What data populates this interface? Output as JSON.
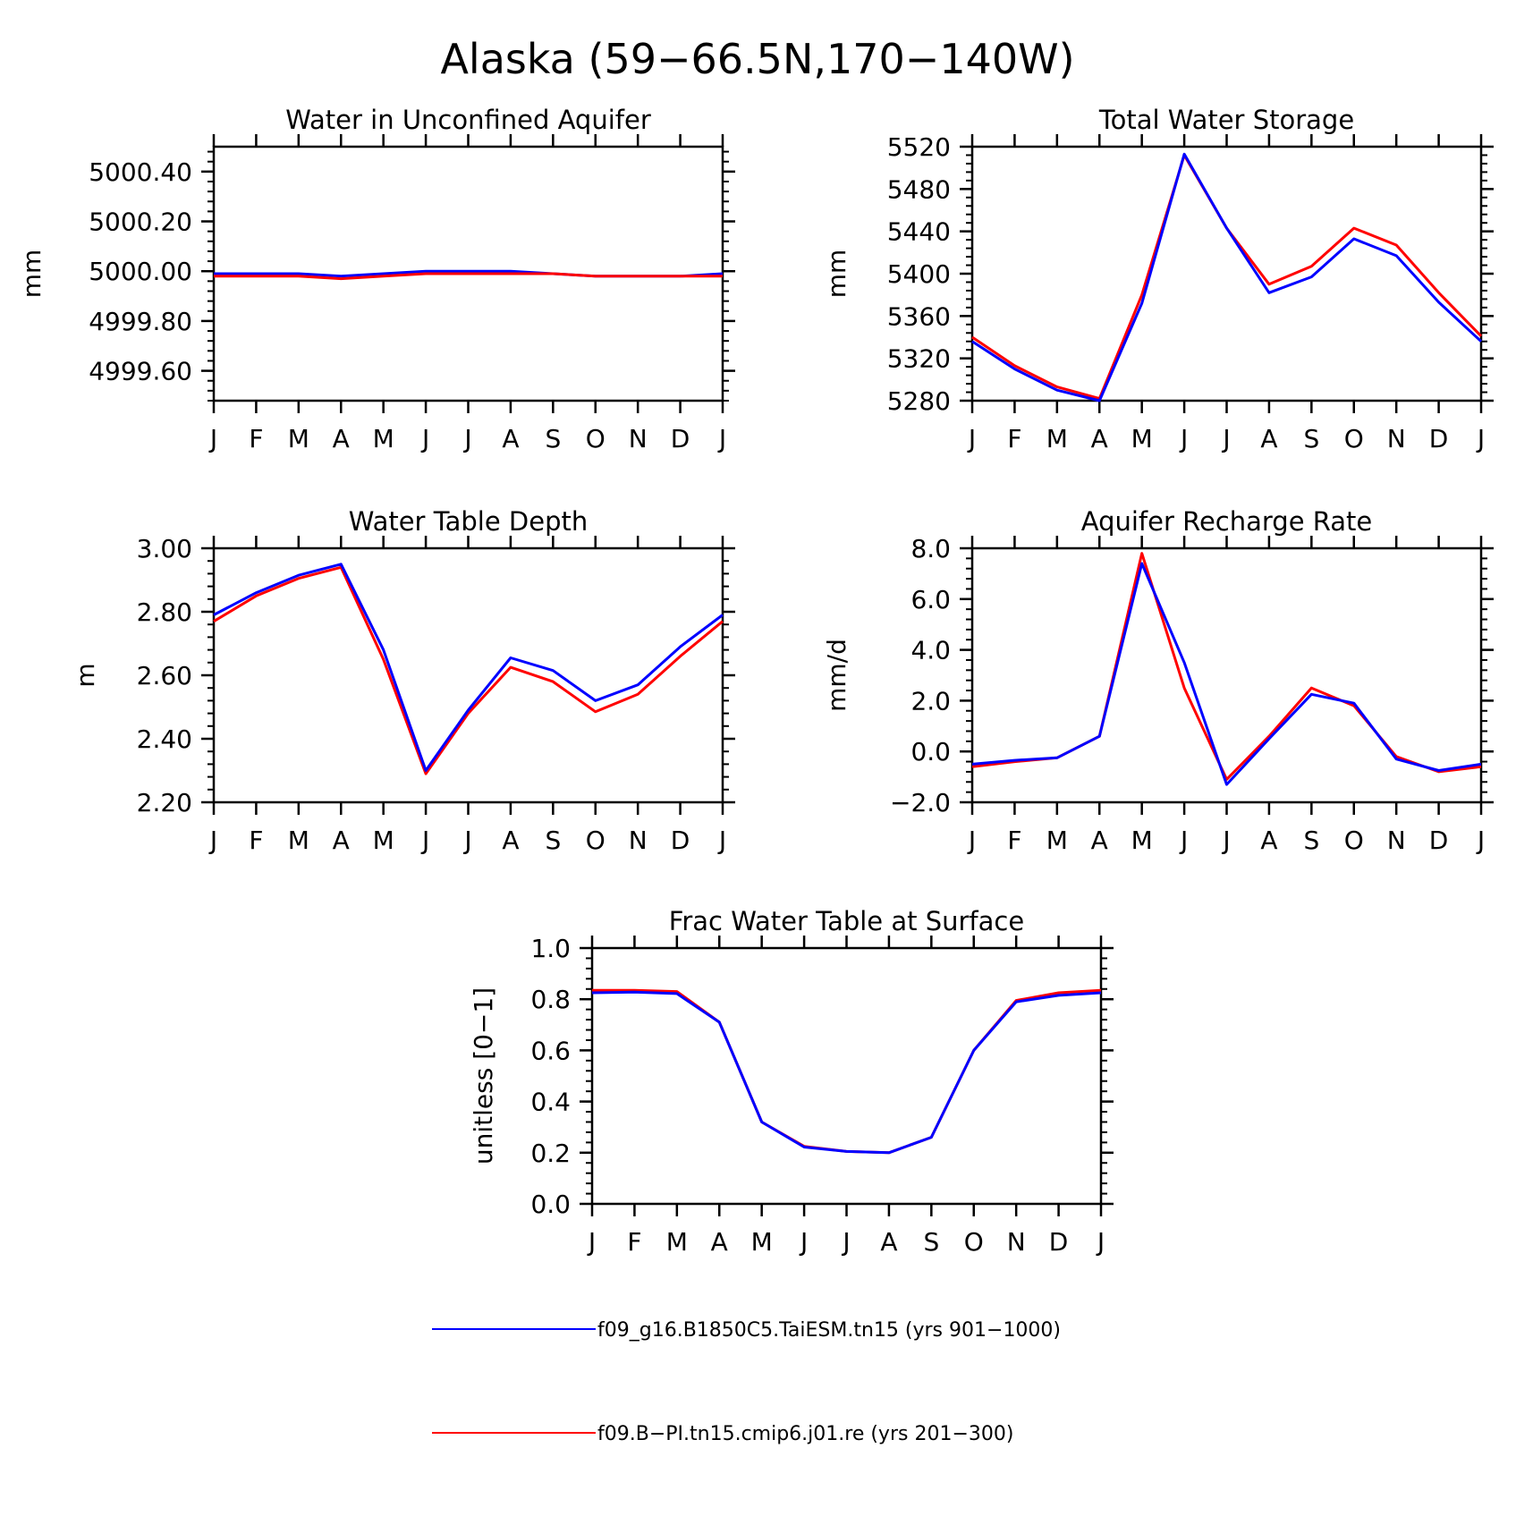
{
  "figure": {
    "title": "Alaska (59−66.5N,170−140W)"
  },
  "months": [
    "J",
    "F",
    "M",
    "A",
    "M",
    "J",
    "J",
    "A",
    "S",
    "O",
    "N",
    "D",
    "J"
  ],
  "colors": {
    "blue": "#0000ff",
    "red": "#ff0000"
  },
  "legend": [
    {
      "label": "f09_g16.B1850C5.TaiESM.tn15 (yrs 901−1000)",
      "color": "#0000ff"
    },
    {
      "label": "f09.B−PI.tn15.cmip6.j01.re (yrs 201−300)",
      "color": "#ff0000"
    }
  ],
  "chart_data": [
    {
      "type": "line",
      "title": "Water in Unconfined Aquifer",
      "ylabel": "mm",
      "ylim": [
        4999.48,
        5000.5
      ],
      "yticks": [
        4999.6,
        4999.8,
        5000.0,
        5000.2,
        5000.4
      ],
      "ytick_labels": [
        "4999.60",
        "4999.80",
        "5000.00",
        "5000.20",
        "5000.40"
      ],
      "yminor_step": 0.04,
      "series": [
        {
          "color": "#0000ff",
          "values": [
            4999.99,
            4999.99,
            4999.99,
            4999.98,
            4999.99,
            5000.0,
            5000.0,
            5000.0,
            4999.99,
            4999.98,
            4999.98,
            4999.98,
            4999.99
          ]
        },
        {
          "color": "#ff0000",
          "values": [
            4999.98,
            4999.98,
            4999.98,
            4999.97,
            4999.98,
            4999.99,
            4999.99,
            4999.99,
            4999.99,
            4999.98,
            4999.98,
            4999.98,
            4999.98
          ]
        }
      ]
    },
    {
      "type": "line",
      "title": "Total Water Storage",
      "ylabel": "mm",
      "ylim": [
        5280,
        5520
      ],
      "yticks": [
        5280,
        5320,
        5360,
        5400,
        5440,
        5480,
        5520
      ],
      "ytick_labels": [
        "5280",
        "5320",
        "5360",
        "5400",
        "5440",
        "5480",
        "5520"
      ],
      "yminor_step": 8,
      "series": [
        {
          "color": "#ff0000",
          "values": [
            5340,
            5313,
            5293,
            5282,
            5380,
            5512,
            5443,
            5390,
            5407,
            5443,
            5427,
            5382,
            5341
          ]
        },
        {
          "color": "#0000ff",
          "values": [
            5336,
            5310,
            5290,
            5280,
            5372,
            5513,
            5443,
            5382,
            5397,
            5433,
            5417,
            5373,
            5336
          ]
        }
      ]
    },
    {
      "type": "line",
      "title": "Water Table Depth",
      "ylabel": "m",
      "ylim": [
        2.2,
        3.0
      ],
      "yticks": [
        2.2,
        2.4,
        2.6,
        2.8,
        3.0
      ],
      "ytick_labels": [
        "2.20",
        "2.40",
        "2.60",
        "2.80",
        "3.00"
      ],
      "yminor_step": 0.04,
      "series": [
        {
          "color": "#ff0000",
          "values": [
            2.77,
            2.85,
            2.905,
            2.94,
            2.65,
            2.29,
            2.48,
            2.625,
            2.58,
            2.485,
            2.54,
            2.66,
            2.77
          ]
        },
        {
          "color": "#0000ff",
          "values": [
            2.79,
            2.86,
            2.915,
            2.95,
            2.68,
            2.3,
            2.49,
            2.655,
            2.615,
            2.52,
            2.57,
            2.69,
            2.79
          ]
        }
      ]
    },
    {
      "type": "line",
      "title": "Aquifer Recharge Rate",
      "ylabel": "mm/d",
      "ylim": [
        -2.0,
        8.0
      ],
      "yticks": [
        -2.0,
        0.0,
        2.0,
        4.0,
        6.0,
        8.0
      ],
      "ytick_labels": [
        "−2.0",
        "0.0",
        "2.0",
        "4.0",
        "6.0",
        "8.0"
      ],
      "yminor_step": 0.4,
      "series": [
        {
          "color": "#ff0000",
          "values": [
            -0.6,
            -0.4,
            -0.25,
            0.6,
            7.8,
            2.5,
            -1.1,
            0.6,
            2.5,
            1.8,
            -0.2,
            -0.8,
            -0.6
          ]
        },
        {
          "color": "#0000ff",
          "values": [
            -0.5,
            -0.35,
            -0.25,
            0.6,
            7.4,
            3.5,
            -1.3,
            0.5,
            2.25,
            1.9,
            -0.3,
            -0.75,
            -0.5
          ]
        }
      ]
    },
    {
      "type": "line",
      "title": "Frac Water Table at Surface",
      "ylabel": "unitless [0−1]",
      "ylim": [
        0.0,
        1.0
      ],
      "yticks": [
        0.0,
        0.2,
        0.4,
        0.6,
        0.8,
        1.0
      ],
      "ytick_labels": [
        "0.0",
        "0.2",
        "0.4",
        "0.6",
        "0.8",
        "1.0"
      ],
      "yminor_step": 0.04,
      "series": [
        {
          "color": "#ff0000",
          "values": [
            0.835,
            0.835,
            0.83,
            0.71,
            0.32,
            0.225,
            0.205,
            0.2,
            0.26,
            0.6,
            0.795,
            0.825,
            0.835
          ]
        },
        {
          "color": "#0000ff",
          "values": [
            0.825,
            0.828,
            0.822,
            0.71,
            0.32,
            0.222,
            0.205,
            0.2,
            0.26,
            0.6,
            0.79,
            0.815,
            0.825
          ]
        }
      ]
    }
  ]
}
